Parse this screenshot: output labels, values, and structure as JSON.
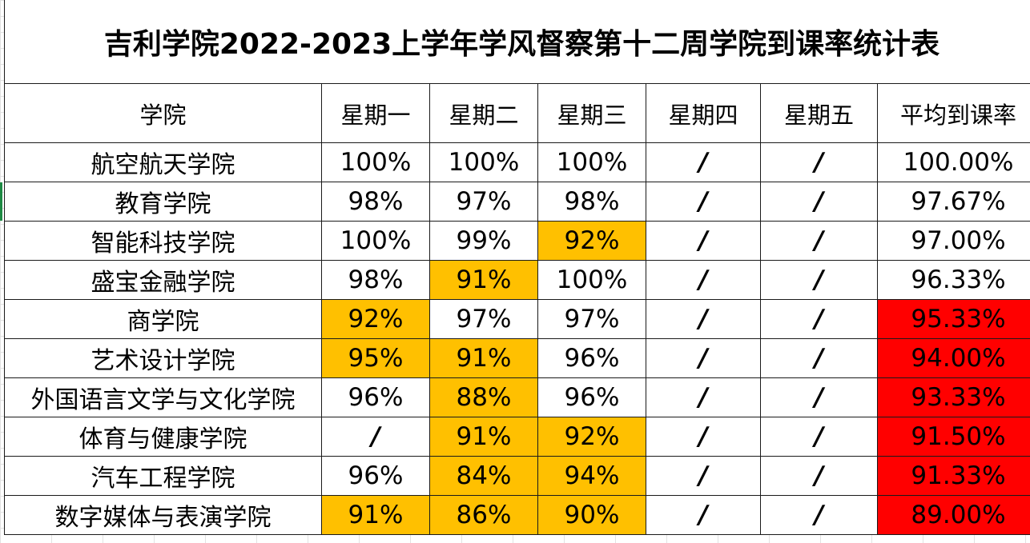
{
  "title": "吉利学院2022-2023上学年学风督察第十二周学院到课率统计表",
  "headers": [
    "学院",
    "星期一",
    "星期二",
    "星期三",
    "星期四",
    "星期五",
    "平均到课率"
  ],
  "highlight_colors": {
    "low_day": "#ffc000",
    "low_average": "#ff0000"
  },
  "rows": [
    {
      "college": "航空航天学院",
      "mon": "100%",
      "tue": "100%",
      "wed": "100%",
      "thu": "/",
      "fri": "/",
      "avg": "100.00%"
    },
    {
      "college": "教育学院",
      "mon": "98%",
      "tue": "97%",
      "wed": "98%",
      "thu": "/",
      "fri": "/",
      "avg": "97.67%"
    },
    {
      "college": "智能科技学院",
      "mon": "100%",
      "tue": "99%",
      "wed": "92%",
      "thu": "/",
      "fri": "/",
      "avg": "97.00%"
    },
    {
      "college": "盛宝金融学院",
      "mon": "98%",
      "tue": "91%",
      "wed": "100%",
      "thu": "/",
      "fri": "/",
      "avg": "96.33%"
    },
    {
      "college": "商学院",
      "mon": "92%",
      "tue": "97%",
      "wed": "97%",
      "thu": "/",
      "fri": "/",
      "avg": "95.33%"
    },
    {
      "college": "艺术设计学院",
      "mon": "95%",
      "tue": "91%",
      "wed": "96%",
      "thu": "/",
      "fri": "/",
      "avg": "94.00%"
    },
    {
      "college": "外国语言文学与文化学院",
      "mon": "96%",
      "tue": "88%",
      "wed": "96%",
      "thu": "/",
      "fri": "/",
      "avg": "93.33%"
    },
    {
      "college": "体育与健康学院",
      "mon": "/",
      "tue": "91%",
      "wed": "92%",
      "thu": "/",
      "fri": "/",
      "avg": "91.50%"
    },
    {
      "college": "汽车工程学院",
      "mon": "96%",
      "tue": "84%",
      "wed": "94%",
      "thu": "/",
      "fri": "/",
      "avg": "91.33%"
    },
    {
      "college": "数字媒体与表演学院",
      "mon": "91%",
      "tue": "86%",
      "wed": "90%",
      "thu": "/",
      "fri": "/",
      "avg": "89.00%"
    }
  ]
}
